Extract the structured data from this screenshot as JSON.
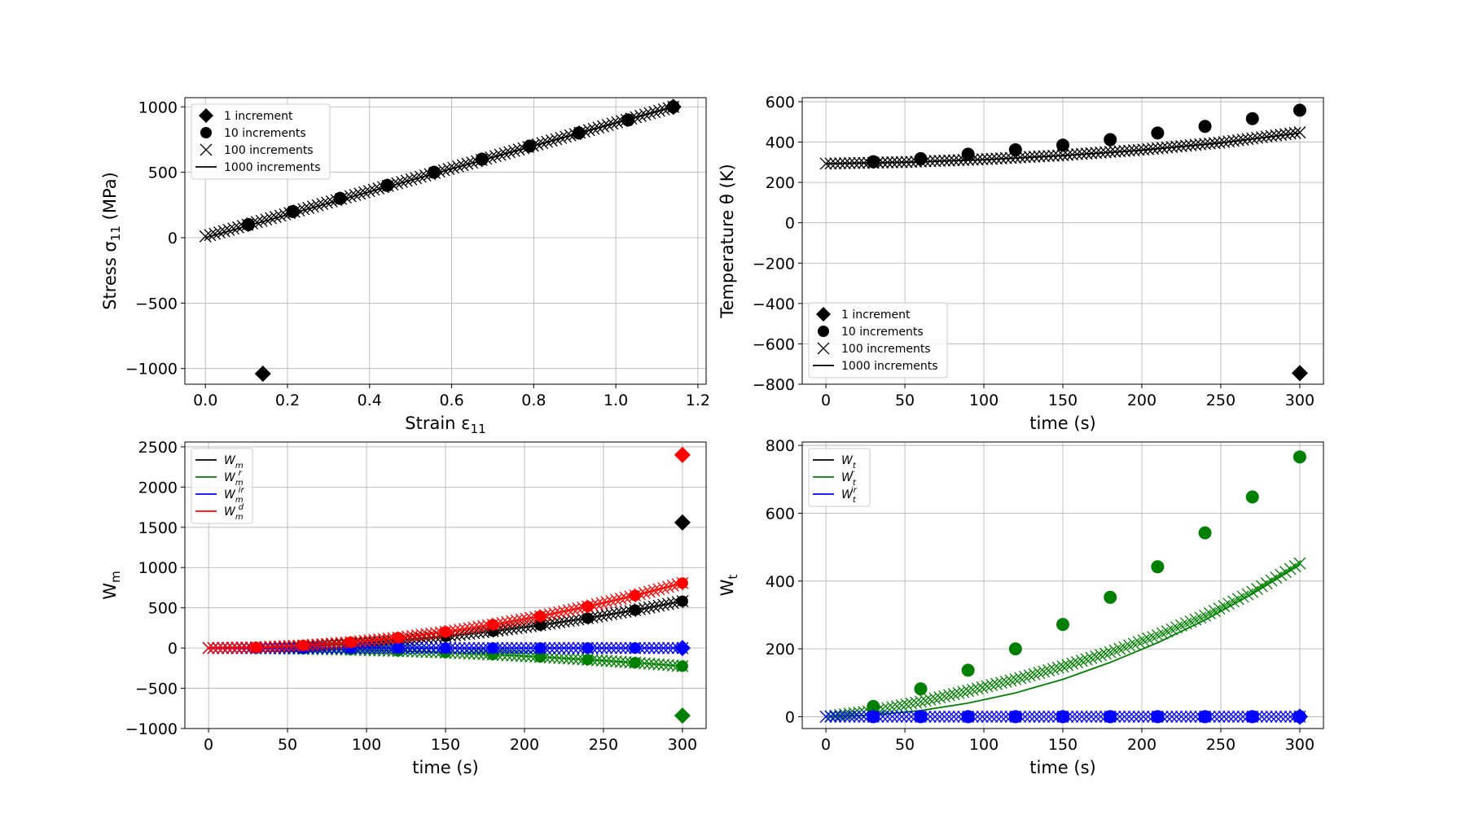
{
  "chart_data": [
    {
      "type": "scatter",
      "id": "stress-strain",
      "xlabel": "Strain ε",
      "xlabel_sub": "11",
      "ylabel": "Stress σ",
      "ylabel_sub": "11",
      "ylabel_suffix": " (MPa)",
      "xlim": [
        -0.05,
        1.22
      ],
      "ylim": [
        -1120,
        1070
      ],
      "xticks": [
        0.0,
        0.2,
        0.4,
        0.6,
        0.8,
        1.0,
        1.2
      ],
      "xtick_labels": [
        "0.0",
        "0.2",
        "0.4",
        "0.6",
        "0.8",
        "1.0",
        "1.2"
      ],
      "yticks": [
        -1000,
        -500,
        0,
        500,
        1000
      ],
      "ytick_labels": [
        "−1000",
        "−500",
        "0",
        "500",
        "1000"
      ],
      "grid": true,
      "legend_position": "upper-left",
      "legend": [
        {
          "label": "1 increment",
          "marker": "diamond"
        },
        {
          "label": "10 increments",
          "marker": "circle"
        },
        {
          "label": "100 increments",
          "marker": "x"
        },
        {
          "label": "1000 increments",
          "marker": "line"
        }
      ],
      "series": [
        {
          "name": "1 increment",
          "marker": "diamond",
          "color": "#000000",
          "x": [
            0.14,
            1.14
          ],
          "y": [
            -1040,
            1000
          ]
        },
        {
          "name": "10 increments",
          "marker": "circle",
          "color": "#000000",
          "x": [
            0.105,
            0.213,
            0.328,
            0.443,
            0.557,
            0.674,
            0.79,
            0.91,
            1.03,
            1.14
          ],
          "y": [
            100,
            200,
            300,
            400,
            500,
            600,
            700,
            800,
            900,
            1000
          ]
        },
        {
          "name": "100 increments",
          "marker": "x",
          "color": "#000000",
          "x_range": [
            0.0,
            1.14
          ],
          "y_range": [
            10,
            1000
          ],
          "count": 100
        },
        {
          "name": "1000 increments",
          "marker": "line",
          "color": "#000000",
          "x": [
            0.0,
            1.14
          ],
          "y": [
            0,
            1000
          ]
        }
      ]
    },
    {
      "type": "scatter",
      "id": "temperature-time",
      "xlabel": "time (s)",
      "ylabel": "Temperature θ (K)",
      "xlim": [
        -15,
        315
      ],
      "ylim": [
        -800,
        620
      ],
      "xticks": [
        0,
        50,
        100,
        150,
        200,
        250,
        300
      ],
      "xtick_labels": [
        "0",
        "50",
        "100",
        "150",
        "200",
        "250",
        "300"
      ],
      "yticks": [
        -800,
        -600,
        -400,
        -200,
        0,
        200,
        400,
        600
      ],
      "ytick_labels": [
        "−800",
        "−600",
        "−400",
        "−200",
        "0",
        "200",
        "400",
        "600"
      ],
      "grid": true,
      "legend_position": "lower-left",
      "legend": [
        {
          "label": "1 increment",
          "marker": "diamond"
        },
        {
          "label": "10 increments",
          "marker": "circle"
        },
        {
          "label": "100 increments",
          "marker": "x"
        },
        {
          "label": "1000 increments",
          "marker": "line"
        }
      ],
      "series": [
        {
          "name": "1 increment",
          "marker": "diamond",
          "color": "#000000",
          "x": [
            300
          ],
          "y": [
            -745
          ]
        },
        {
          "name": "10 increments",
          "marker": "circle",
          "color": "#000000",
          "x": [
            30,
            60,
            90,
            120,
            150,
            180,
            210,
            240,
            270,
            300
          ],
          "y": [
            303,
            318,
            340,
            362,
            385,
            412,
            445,
            478,
            516,
            558
          ]
        },
        {
          "name": "100 increments",
          "marker": "x",
          "color": "#000000",
          "x": [
            0,
            50,
            100,
            150,
            200,
            250,
            300
          ],
          "y": [
            293,
            301,
            315,
            335,
            362,
            398,
            448
          ],
          "count": 100
        },
        {
          "name": "1000 increments",
          "marker": "line",
          "color": "#000000",
          "x": [
            0,
            50,
            100,
            150,
            200,
            250,
            300
          ],
          "y": [
            293,
            300,
            313,
            333,
            360,
            396,
            445
          ]
        }
      ]
    },
    {
      "type": "scatter",
      "id": "wm-time",
      "xlabel": "time (s)",
      "ylabel": "W",
      "ylabel_sub": "m",
      "xlim": [
        -15,
        315
      ],
      "ylim": [
        -1000,
        2560
      ],
      "xticks": [
        0,
        50,
        100,
        150,
        200,
        250,
        300
      ],
      "xtick_labels": [
        "0",
        "50",
        "100",
        "150",
        "200",
        "250",
        "300"
      ],
      "yticks": [
        -1000,
        -500,
        0,
        500,
        1000,
        1500,
        2000,
        2500
      ],
      "ytick_labels": [
        "−1000",
        "−500",
        "0",
        "500",
        "1000",
        "1500",
        "2000",
        "2500"
      ],
      "grid": true,
      "legend_position": "upper-left",
      "legend": [
        {
          "label": "W",
          "sub": "m",
          "sup": "",
          "color": "#000000"
        },
        {
          "label": "W",
          "sub": "m",
          "sup": "r",
          "color": "#008000"
        },
        {
          "label": "W",
          "sub": "m",
          "sup": "ir",
          "color": "#0000ff"
        },
        {
          "label": "W",
          "sub": "m",
          "sup": "d",
          "color": "#ff0000"
        }
      ],
      "series": [
        {
          "name": "W_m",
          "color": "#000000",
          "x": [
            0,
            30,
            60,
            90,
            120,
            150,
            180,
            210,
            240,
            270,
            300
          ],
          "y": [
            0,
            6,
            23,
            52,
            93,
            145,
            210,
            285,
            372,
            471,
            582
          ],
          "single_increment": {
            "x": 300,
            "y": 1560
          }
        },
        {
          "name": "W_m^r",
          "color": "#008000",
          "x": [
            0,
            30,
            60,
            90,
            120,
            150,
            180,
            210,
            240,
            270,
            300
          ],
          "y": [
            0,
            -2,
            -9,
            -20,
            -36,
            -56,
            -81,
            -110,
            -144,
            -182,
            -225
          ],
          "single_increment": {
            "x": 300,
            "y": -840
          }
        },
        {
          "name": "W_m^ir",
          "color": "#0000ff",
          "x": [
            0,
            30,
            60,
            90,
            120,
            150,
            180,
            210,
            240,
            270,
            300
          ],
          "y": [
            0,
            0,
            0,
            0,
            0,
            0,
            0,
            0,
            0,
            0,
            0
          ],
          "single_increment": {
            "x": 300,
            "y": 0
          }
        },
        {
          "name": "W_m^d",
          "color": "#ff0000",
          "x": [
            0,
            30,
            60,
            90,
            120,
            150,
            180,
            210,
            240,
            270,
            300
          ],
          "y": [
            0,
            8,
            32,
            72,
            129,
            201,
            291,
            395,
            516,
            653,
            807
          ],
          "single_increment": {
            "x": 300,
            "y": 2400
          }
        }
      ]
    },
    {
      "type": "scatter",
      "id": "wt-time",
      "xlabel": "time (s)",
      "ylabel": "W",
      "ylabel_sub": "t",
      "xlim": [
        -15,
        315
      ],
      "ylim": [
        -35,
        810
      ],
      "xticks": [
        0,
        50,
        100,
        150,
        200,
        250,
        300
      ],
      "xtick_labels": [
        "0",
        "50",
        "100",
        "150",
        "200",
        "250",
        "300"
      ],
      "yticks": [
        0,
        200,
        400,
        600,
        800
      ],
      "ytick_labels": [
        "0",
        "200",
        "400",
        "600",
        "800"
      ],
      "grid": true,
      "legend_position": "upper-left",
      "legend": [
        {
          "label": "W",
          "sub": "t",
          "sup": "",
          "color": "#000000"
        },
        {
          "label": "W",
          "sub": "t",
          "sup": "r",
          "color": "#008000"
        },
        {
          "label": "W",
          "sub": "t",
          "sup": "ir",
          "color": "#0000ff"
        }
      ],
      "series": [
        {
          "name": "W_t^r 10 increments",
          "marker": "circle",
          "color": "#008000",
          "x": [
            30,
            60,
            90,
            120,
            150,
            180,
            210,
            240,
            270,
            300
          ],
          "y": [
            30,
            82,
            137,
            200,
            272,
            352,
            442,
            542,
            648,
            766
          ]
        },
        {
          "name": "W_t^r 100 increments",
          "marker": "x",
          "color": "#008000",
          "x": [
            0,
            30,
            60,
            90,
            120,
            150,
            180,
            210,
            240,
            270,
            300
          ],
          "y": [
            0,
            17,
            44,
            76,
            110,
            148,
            190,
            240,
            298,
            368,
            452
          ],
          "count": 100
        },
        {
          "name": "W_t^r 1000 increments",
          "marker": "line",
          "color": "#008000",
          "x": [
            0,
            30,
            60,
            90,
            120,
            150,
            180,
            210,
            240,
            270,
            300
          ],
          "y": [
            0,
            5,
            18,
            40,
            70,
            110,
            160,
            218,
            285,
            362,
            448
          ]
        },
        {
          "name": "W_t^ir",
          "marker": "circle",
          "color": "#0000ff",
          "x": [
            30,
            60,
            90,
            120,
            150,
            180,
            210,
            240,
            270,
            300
          ],
          "y": [
            0,
            0,
            0,
            0,
            0,
            0,
            0,
            0,
            0,
            0
          ]
        },
        {
          "name": "W_t^ir 100 increments",
          "marker": "x",
          "color": "#0000ff",
          "x": [
            0,
            300
          ],
          "y": [
            0,
            0
          ],
          "count": 100
        },
        {
          "name": "W_t^ir 1 increment",
          "marker": "diamond",
          "color": "#0000ff",
          "x": [
            300
          ],
          "y": [
            0
          ]
        }
      ]
    }
  ]
}
